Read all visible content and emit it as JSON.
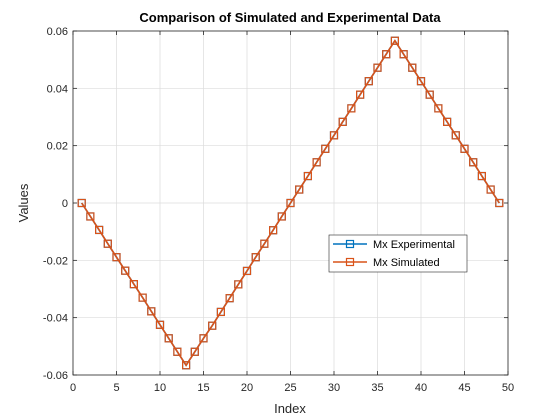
{
  "chart_data": {
    "type": "line",
    "title": "Comparison of Simulated and Experimental Data",
    "xlabel": "Index",
    "ylabel": "Values",
    "xlim": [
      0,
      50
    ],
    "ylim": [
      -0.06,
      0.06
    ],
    "xticks": [
      0,
      5,
      10,
      15,
      20,
      25,
      30,
      35,
      40,
      45,
      50
    ],
    "yticks": [
      -0.06,
      -0.04,
      -0.02,
      0,
      0.02,
      0.04,
      0.06
    ],
    "xtick_labels": [
      "0",
      "5",
      "10",
      "15",
      "20",
      "25",
      "30",
      "35",
      "40",
      "45",
      "50"
    ],
    "ytick_labels": [
      "-0.06",
      "-0.04",
      "-0.02",
      "0",
      "0.02",
      "0.04",
      "0.06"
    ],
    "grid": true,
    "legend_position": "right-center",
    "x": [
      1,
      2,
      3,
      4,
      5,
      6,
      7,
      8,
      9,
      10,
      11,
      12,
      13,
      14,
      15,
      16,
      17,
      18,
      19,
      20,
      21,
      22,
      23,
      24,
      25,
      26,
      27,
      28,
      29,
      30,
      31,
      32,
      33,
      34,
      35,
      36,
      37,
      38,
      39,
      40,
      41,
      42,
      43,
      44,
      45,
      46,
      47,
      48,
      49
    ],
    "series": [
      {
        "name": "Mx Experimental",
        "color": "#0072BD",
        "values": [
          0,
          -0.0047,
          -0.0094,
          -0.0142,
          -0.0189,
          -0.0236,
          -0.0283,
          -0.033,
          -0.0378,
          -0.0425,
          -0.0472,
          -0.0519,
          -0.0566,
          -0.0519,
          -0.0472,
          -0.0428,
          -0.038,
          -0.0332,
          -0.0284,
          -0.0237,
          -0.0189,
          -0.0142,
          -0.0095,
          -0.0047,
          0,
          0.0047,
          0.0094,
          0.0142,
          0.0189,
          0.0236,
          0.0283,
          0.033,
          0.0378,
          0.0425,
          0.0472,
          0.0519,
          0.0566,
          0.0519,
          0.0472,
          0.0425,
          0.0378,
          0.033,
          0.0283,
          0.0236,
          0.0189,
          0.0142,
          0.0094,
          0.0047,
          0
        ]
      },
      {
        "name": "Mx Simulated",
        "color": "#D95319",
        "values": [
          0,
          -0.0047,
          -0.0094,
          -0.0142,
          -0.0189,
          -0.0236,
          -0.0283,
          -0.033,
          -0.0378,
          -0.0425,
          -0.0472,
          -0.0519,
          -0.0566,
          -0.0519,
          -0.0472,
          -0.0428,
          -0.038,
          -0.0332,
          -0.0284,
          -0.0237,
          -0.0189,
          -0.0142,
          -0.0095,
          -0.0047,
          0,
          0.0047,
          0.0094,
          0.0142,
          0.0189,
          0.0236,
          0.0283,
          0.033,
          0.0378,
          0.0425,
          0.0472,
          0.0519,
          0.0566,
          0.0519,
          0.0472,
          0.0425,
          0.0378,
          0.033,
          0.0283,
          0.0236,
          0.0189,
          0.0142,
          0.0094,
          0.0047,
          0
        ]
      }
    ]
  }
}
